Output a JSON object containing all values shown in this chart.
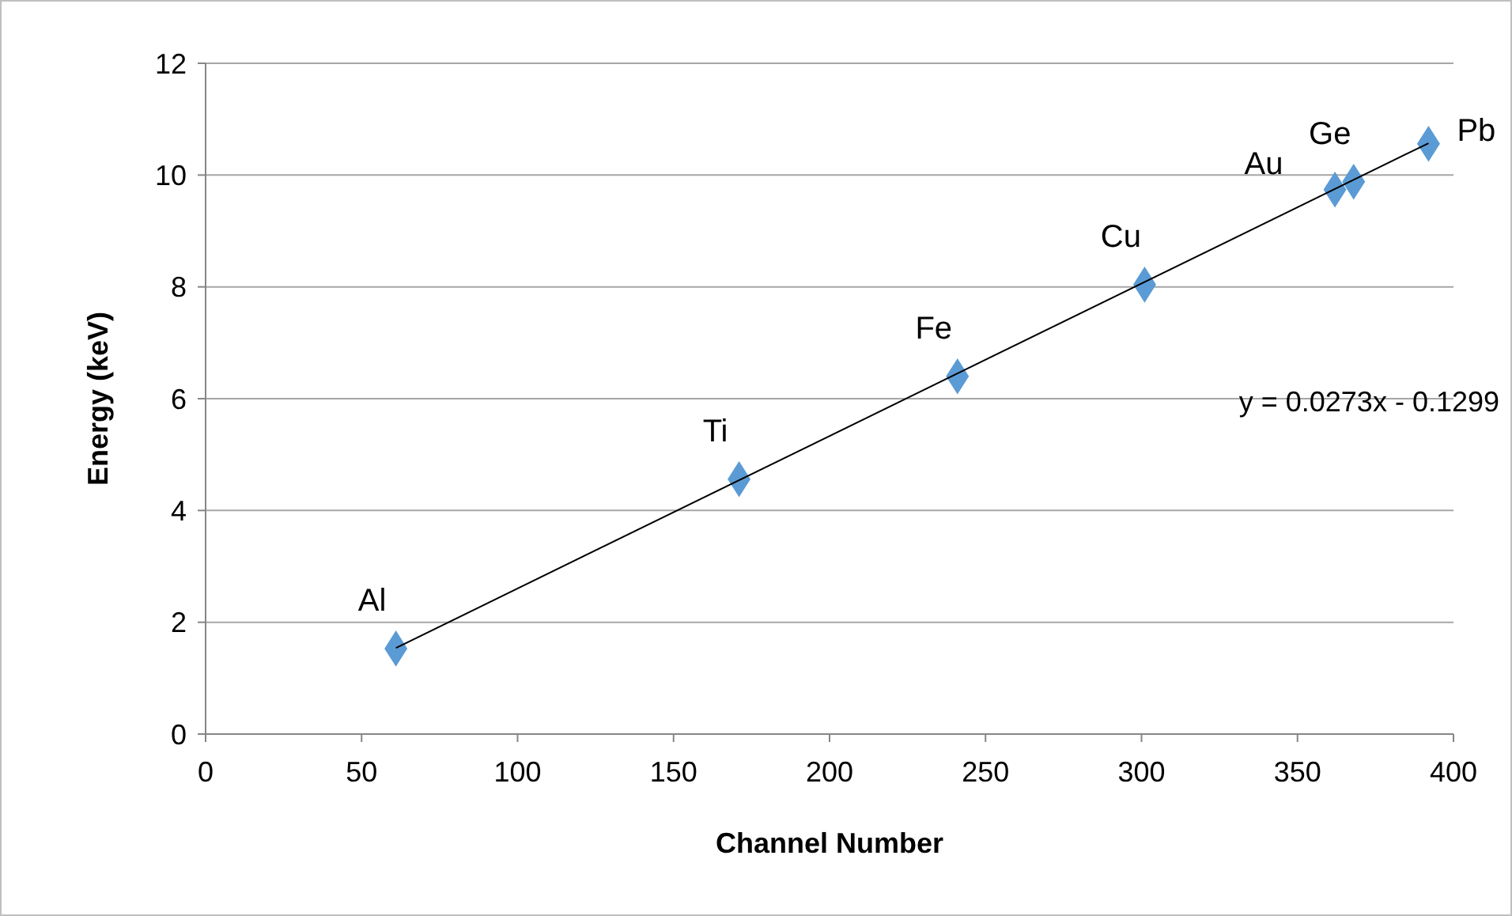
{
  "chart_data": {
    "type": "scatter",
    "xlabel": "Channel Number",
    "ylabel": "Energy (keV)",
    "xlim": [
      0,
      400
    ],
    "xticks": [
      0,
      50,
      100,
      150,
      200,
      250,
      300,
      350,
      400
    ],
    "ylim": [
      0,
      12
    ],
    "yticks": [
      0,
      2,
      4,
      6,
      8,
      10,
      12
    ],
    "grid": "y",
    "series": [
      {
        "color": "#5b9bd5",
        "marker": "diamond",
        "x": [
          61,
          171,
          241,
          301,
          362,
          368,
          392
        ],
        "values": [
          1.53,
          4.56,
          6.4,
          8.04,
          9.74,
          9.88,
          10.56
        ]
      },
      {
        "type": "line",
        "color": "#000000",
        "marker": "none",
        "line_style": "solid",
        "x": [
          61,
          392
        ],
        "values": [
          1.54,
          10.57
        ]
      }
    ],
    "annotations": [
      {
        "text": "Al",
        "x": 61,
        "y": 1.53
      },
      {
        "text": "Ti",
        "x": 171,
        "y": 4.56
      },
      {
        "text": "Fe",
        "x": 241,
        "y": 6.4
      },
      {
        "text": "Cu",
        "x": 301,
        "y": 8.04
      },
      {
        "text": "Au",
        "x": 362,
        "y": 9.74
      },
      {
        "text": "Ge",
        "x": 368,
        "y": 9.88
      },
      {
        "text": "Pb",
        "x": 392,
        "y": 10.56
      },
      "y = 0.0273x - 0.1299"
    ]
  }
}
